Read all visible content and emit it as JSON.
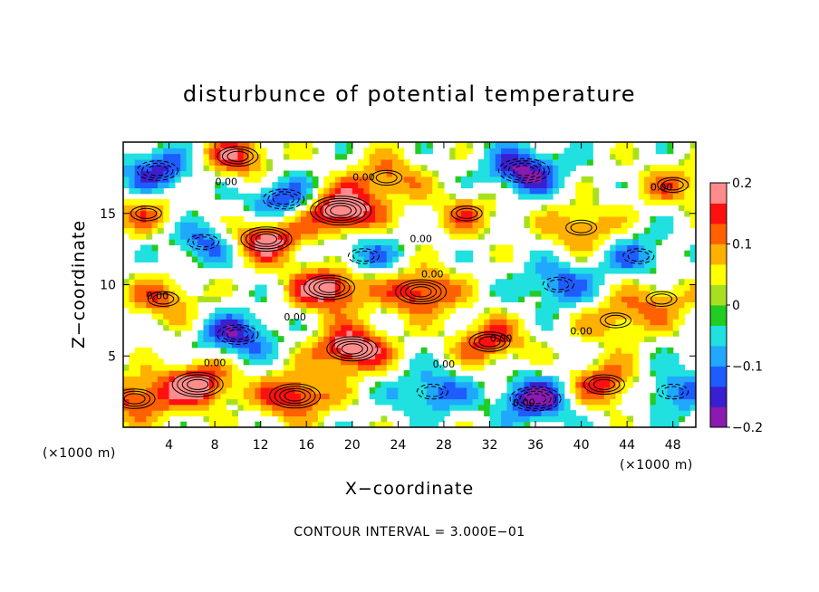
{
  "chart_data": {
    "type": "heatmap",
    "title": "disturbunce of potential temperature",
    "xlabel": "X−coordinate",
    "ylabel": "Z−coordinate",
    "x_unit_label": "(×1000 m)",
    "x_unit_label_right": "(×1000 m)",
    "footer": "CONTOUR INTERVAL = 3.000E−01",
    "xlim": [
      0,
      50
    ],
    "ylim": [
      0,
      20
    ],
    "x_ticks": [
      4,
      8,
      12,
      16,
      20,
      24,
      28,
      32,
      36,
      40,
      44,
      48
    ],
    "x_tick_labels": [
      "4",
      "8",
      "12",
      "16",
      "20",
      "24",
      "28",
      "32",
      "36",
      "40",
      "44",
      "48"
    ],
    "y_ticks": [
      5,
      10,
      15
    ],
    "y_tick_labels": [
      "5",
      "10",
      "15"
    ],
    "colorbar": {
      "min": -0.2,
      "max": 0.2,
      "ticks": [
        0.2,
        0.1,
        0,
        -0.1,
        -0.2
      ],
      "tick_labels": [
        "0.2",
        "0.1",
        "0",
        "−0.1",
        "−0.2"
      ],
      "colors": [
        "#8a1ab0",
        "#3a1fd0",
        "#1e5cff",
        "#20a8ff",
        "#20e0e0",
        "#22cc22",
        "#a8e020",
        "#ffff00",
        "#ffb000",
        "#ff6000",
        "#ff1010",
        "#ff8c8c"
      ]
    },
    "contour_interval": 0.3,
    "contour_label": "0.00",
    "blobs": [
      {
        "x": 3,
        "z": 18,
        "v": -0.15
      },
      {
        "x": 6.5,
        "z": 3,
        "v": 0.2
      },
      {
        "x": 10,
        "z": 19,
        "v": 0.15
      },
      {
        "x": 14,
        "z": 16,
        "v": -0.15
      },
      {
        "x": 19,
        "z": 15.2,
        "v": 0.25
      },
      {
        "x": 12.5,
        "z": 13.2,
        "v": 0.2
      },
      {
        "x": 7,
        "z": 13,
        "v": -0.12
      },
      {
        "x": 21,
        "z": 12,
        "v": -0.1
      },
      {
        "x": 26,
        "z": 9.5,
        "v": 0.18
      },
      {
        "x": 18,
        "z": 9.8,
        "v": 0.22
      },
      {
        "x": 30,
        "z": 15,
        "v": 0.1
      },
      {
        "x": 35,
        "z": 18,
        "v": -0.18
      },
      {
        "x": 40,
        "z": 14,
        "v": 0.12
      },
      {
        "x": 45,
        "z": 12,
        "v": -0.1
      },
      {
        "x": 48,
        "z": 17,
        "v": 0.1
      },
      {
        "x": 43,
        "z": 7.5,
        "v": 0.1
      },
      {
        "x": 32,
        "z": 6,
        "v": 0.15
      },
      {
        "x": 20,
        "z": 5.5,
        "v": 0.22
      },
      {
        "x": 10,
        "z": 6.5,
        "v": -0.15
      },
      {
        "x": 3.5,
        "z": 9,
        "v": 0.12
      },
      {
        "x": 36,
        "z": 2,
        "v": -0.18
      },
      {
        "x": 27,
        "z": 2.5,
        "v": -0.12
      },
      {
        "x": 15,
        "z": 2.2,
        "v": 0.18
      },
      {
        "x": 1,
        "z": 2,
        "v": 0.15
      },
      {
        "x": 42,
        "z": 3,
        "v": 0.16
      },
      {
        "x": 48,
        "z": 2.5,
        "v": -0.12
      },
      {
        "x": 23,
        "z": 17.5,
        "v": 0.12
      },
      {
        "x": 38,
        "z": 10,
        "v": -0.12
      },
      {
        "x": 47,
        "z": 9,
        "v": 0.1
      },
      {
        "x": 2,
        "z": 15,
        "v": 0.1
      }
    ]
  }
}
